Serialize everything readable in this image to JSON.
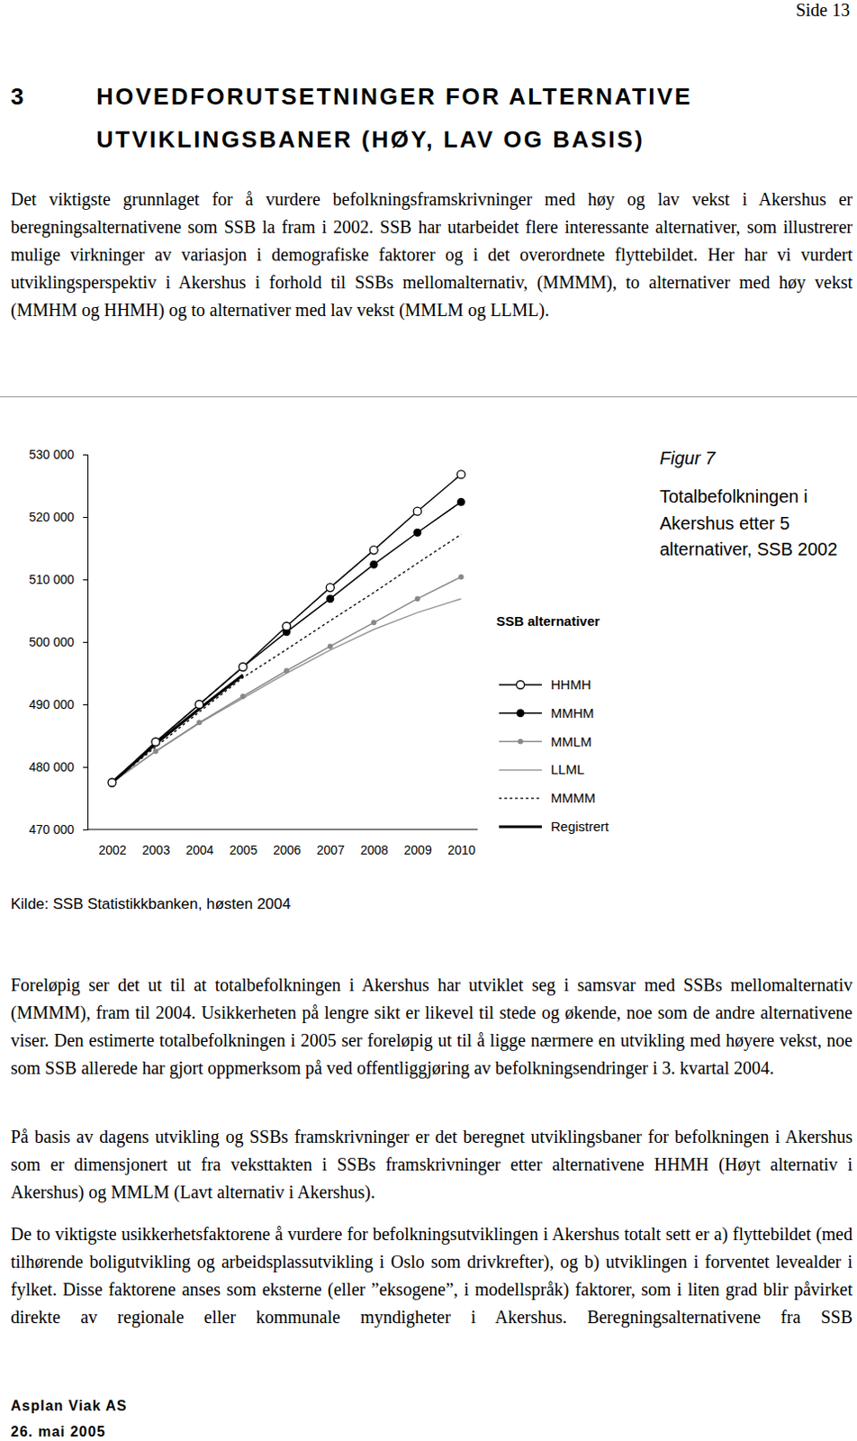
{
  "page_number": "Side 13",
  "heading": {
    "number": "3",
    "lines": [
      "HOVEDFORUTSETNINGER FOR ALTERNATIVE",
      "UTVIKLINGSBANER (HØY, LAV OG BASIS)"
    ]
  },
  "paragraphs": [
    "Det viktigste grunnlaget for å vurdere befolkningsframskrivninger med høy og lav vekst i Akershus er beregningsalternativene som SSB la fram i 2002. SSB har utarbeidet flere interessante alternativer, som illustrerer mulige virkninger av variasjon i demografiske faktorer og i det overordnete flyttebildet. Her har vi vurdert utviklingsperspektiv i Akershus i forhold til SSBs mellomalternativ, (MMMM), to alternativer med høy vekst (MMHM og HHMH) og to alternativer med lav vekst (MMLM og LLML).",
    "Foreløpig ser det ut til at totalbefolkningen i Akershus har utviklet seg i samsvar med SSBs mellomalternativ (MMMM), fram til 2004. Usikkerheten på lengre sikt er likevel til stede og økende, noe som de andre alternativene viser. Den estimerte totalbefolkningen i 2005 ser foreløpig ut til å ligge nærmere en utvikling med høyere vekst, noe som SSB allerede har gjort oppmerksom på ved offentliggjøring av befolkningsendringer i 3. kvartal 2004.",
    "På basis av dagens utvikling og SSBs framskrivninger er det beregnet utviklingsbaner for befolkningen i Akershus som er dimensjonert ut fra veksttakten i SSBs framskrivninger etter alternativene HHMH (Høyt alternativ i Akershus) og MMLM (Lavt alternativ i Akershus).",
    "De to viktigste usikkerhetsfaktorene å vurdere for befolkningsutviklingen i Akershus totalt sett er a) flyttebildet (med tilhørende boligutvikling og arbeidsplassutvikling i Oslo som drivkrefter), og b) utviklingen i forventet levealder i fylket. Disse faktorene anses som eksterne (eller ”eksogene”, i modellspråk) faktorer, som i liten grad blir påvirket direkte av regionale eller kommunale myndigheter i Akershus. Beregningsalternativene fra SSB"
  ],
  "source": "Kilde: SSB Statistikkbanken, høsten 2004",
  "footer": [
    "Asplan Viak AS",
    "26. mai 2005"
  ],
  "chart_data": {
    "type": "line",
    "title": "Figur 7",
    "subtitle": "Totalbefolkningen i Akershus etter 5 alternativer, SSB 2002",
    "legend_title": "SSB alternativer",
    "legend": "right",
    "categories": [
      "2002",
      "2003",
      "2004",
      "2005",
      "2006",
      "2007",
      "2008",
      "2009",
      "2010"
    ],
    "ylim": [
      470000,
      530000
    ],
    "yticks": [
      {
        "value": 470000,
        "label": "470 000"
      },
      {
        "value": 480000,
        "label": "480 000"
      },
      {
        "value": 490000,
        "label": "490 000"
      },
      {
        "value": 500000,
        "label": "500 000"
      },
      {
        "value": 510000,
        "label": "510 000"
      },
      {
        "value": 520000,
        "label": "520 000"
      },
      {
        "value": 530000,
        "label": "530 000"
      }
    ],
    "grid": false,
    "series": [
      {
        "name": "HHMH",
        "color": "#000000",
        "marker": "circle-open",
        "line_style": "solid",
        "values": [
          477500,
          484000,
          490000,
          496000,
          502500,
          508700,
          514700,
          520900,
          526800
        ]
      },
      {
        "name": "MMHM",
        "color": "#000000",
        "marker": "circle",
        "line_style": "solid",
        "values": [
          477500,
          484000,
          490000,
          496000,
          501600,
          506900,
          512400,
          517500,
          522400
        ]
      },
      {
        "name": "MMLM",
        "color": "#888888",
        "marker": "dot",
        "line_style": "solid",
        "values": [
          477500,
          482500,
          487100,
          491300,
          495400,
          499300,
          503100,
          506900,
          510400
        ]
      },
      {
        "name": "LLML",
        "color": "#999999",
        "marker": "none",
        "line_style": "solid",
        "values": [
          477500,
          482500,
          487000,
          491000,
          495000,
          498700,
          502000,
          504700,
          506900
        ]
      },
      {
        "name": "MMMM",
        "color": "#000000",
        "marker": "none",
        "line_style": "dotted",
        "values": [
          477500,
          483200,
          488800,
          494300,
          498800,
          503400,
          507900,
          512600,
          517200
        ]
      },
      {
        "name": "Registrert",
        "color": "#000000",
        "marker": "none",
        "line_style": "thick",
        "values": [
          477500,
          483700,
          489300,
          494700,
          null,
          null,
          null,
          null,
          null
        ]
      }
    ]
  }
}
